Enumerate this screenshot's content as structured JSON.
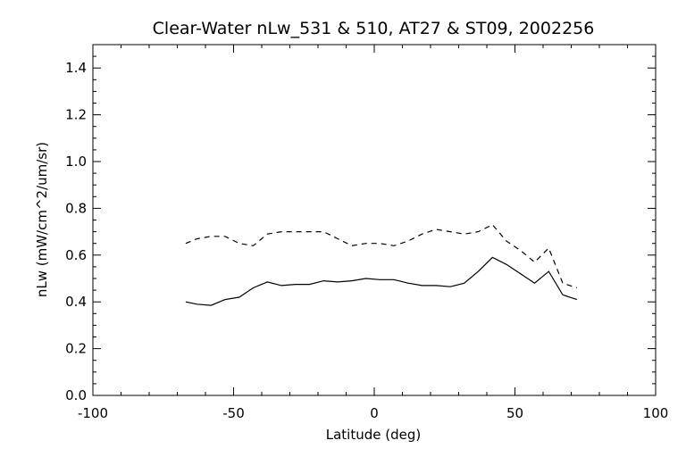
{
  "chart_data": {
    "type": "line",
    "title": "Clear-Water nLw_531 & 510, AT27 & ST09, 2002256",
    "xlabel": "Latitude (deg)",
    "ylabel": "nLw (mW/cm^2/um/sr)",
    "xlim": [
      -100,
      100
    ],
    "ylim": [
      0.0,
      1.5
    ],
    "xticks": [
      "-100",
      "-50",
      "0",
      "50",
      "100"
    ],
    "xtick_values": [
      -100,
      -50,
      0,
      50,
      100
    ],
    "yticks": [
      "0.0",
      "0.2",
      "0.4",
      "0.6",
      "0.8",
      "1.0",
      "1.2",
      "1.4"
    ],
    "ytick_values": [
      0.0,
      0.2,
      0.4,
      0.6,
      0.8,
      1.0,
      1.2,
      1.4
    ],
    "grid": false,
    "series": [
      {
        "style": "dashed",
        "x": [
          -67,
          -63,
          -58,
          -53,
          -48,
          -43,
          -38,
          -33,
          -28,
          -23,
          -18,
          -13,
          -8,
          -3,
          2,
          7,
          12,
          17,
          22,
          27,
          32,
          37,
          42,
          47,
          52,
          57,
          62,
          67,
          72
        ],
        "y": [
          0.65,
          0.67,
          0.68,
          0.68,
          0.65,
          0.64,
          0.69,
          0.7,
          0.7,
          0.7,
          0.7,
          0.67,
          0.64,
          0.65,
          0.65,
          0.64,
          0.66,
          0.69,
          0.71,
          0.7,
          0.69,
          0.7,
          0.73,
          0.66,
          0.62,
          0.57,
          0.63,
          0.48,
          0.46
        ]
      },
      {
        "style": "solid",
        "x": [
          -67,
          -63,
          -58,
          -53,
          -48,
          -43,
          -38,
          -33,
          -28,
          -23,
          -18,
          -13,
          -8,
          -3,
          2,
          7,
          12,
          17,
          22,
          27,
          32,
          37,
          42,
          47,
          52,
          57,
          62,
          67,
          72
        ],
        "y": [
          0.4,
          0.39,
          0.385,
          0.41,
          0.42,
          0.46,
          0.485,
          0.47,
          0.475,
          0.475,
          0.49,
          0.485,
          0.49,
          0.5,
          0.495,
          0.495,
          0.48,
          0.47,
          0.47,
          0.465,
          0.48,
          0.53,
          0.59,
          0.56,
          0.52,
          0.48,
          0.53,
          0.43,
          0.41
        ]
      }
    ]
  }
}
